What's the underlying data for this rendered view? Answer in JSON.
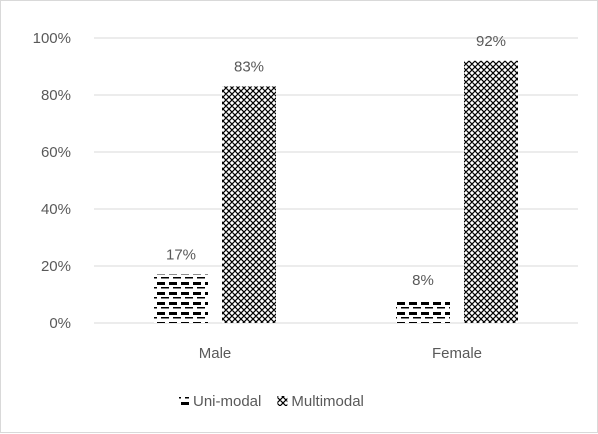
{
  "chart_data": {
    "type": "bar",
    "categories": [
      "Male",
      "Female"
    ],
    "series": [
      {
        "name": "Uni-modal",
        "values": [
          17,
          8
        ],
        "labels": [
          "17%",
          "8%"
        ],
        "pattern": "dashes"
      },
      {
        "name": "Multimodal",
        "values": [
          83,
          92
        ],
        "labels": [
          "83%",
          "92%"
        ],
        "pattern": "crosshatch"
      }
    ],
    "ylim": [
      0,
      100
    ],
    "yticks": [
      0,
      20,
      40,
      60,
      80,
      100
    ],
    "ytick_labels": [
      "0%",
      "20%",
      "40%",
      "60%",
      "80%",
      "100%"
    ],
    "title": "",
    "xlabel": "",
    "ylabel": "",
    "grid": true,
    "legend": "bottom",
    "colors": {
      "ink": "#000000",
      "grid": "#d9d9d9",
      "text": "#595959"
    }
  }
}
